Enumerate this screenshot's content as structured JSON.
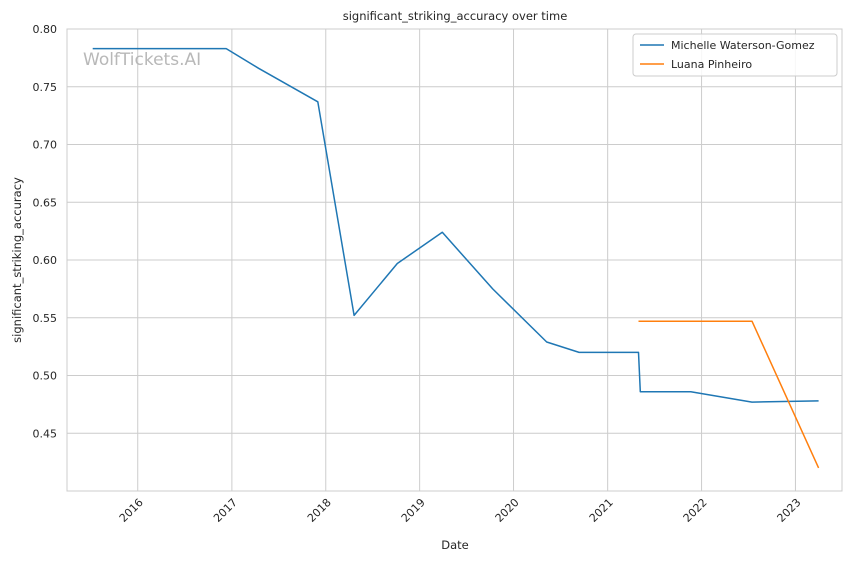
{
  "chart_data": {
    "type": "line",
    "title": "significant_striking_accuracy over time",
    "xlabel": "Date",
    "ylabel": "significant_striking_accuracy",
    "watermark": "WolfTickets.AI",
    "xlim": [
      "2015-04-01",
      "2023-07-01"
    ],
    "ylim": [
      0.4,
      0.8
    ],
    "x_ticks": [
      "2016-01-01",
      "2017-01-01",
      "2018-01-01",
      "2019-01-01",
      "2020-01-01",
      "2021-01-01",
      "2022-01-01",
      "2023-01-01"
    ],
    "x_tick_labels": [
      "2016",
      "2017",
      "2018",
      "2019",
      "2020",
      "2021",
      "2022",
      "2023"
    ],
    "y_ticks": [
      0.45,
      0.5,
      0.55,
      0.6,
      0.65,
      0.7,
      0.75,
      0.8
    ],
    "y_tick_labels": [
      "0.45",
      "0.50",
      "0.55",
      "0.60",
      "0.65",
      "0.70",
      "0.75",
      "0.80"
    ],
    "grid": true,
    "legend_position": "top-right",
    "series": [
      {
        "name": "Michelle Waterson-Gomez",
        "color": "#1f77b4",
        "points": [
          {
            "x": "2015-07-10",
            "y": 0.783
          },
          {
            "x": "2016-12-10",
            "y": 0.783
          },
          {
            "x": "2017-04-15",
            "y": 0.766
          },
          {
            "x": "2017-12-01",
            "y": 0.737
          },
          {
            "x": "2018-04-21",
            "y": 0.552
          },
          {
            "x": "2018-10-06",
            "y": 0.597
          },
          {
            "x": "2019-03-30",
            "y": 0.624
          },
          {
            "x": "2019-10-12",
            "y": 0.575
          },
          {
            "x": "2020-05-09",
            "y": 0.529
          },
          {
            "x": "2020-09-12",
            "y": 0.52
          },
          {
            "x": "2021-05-01",
            "y": 0.52
          },
          {
            "x": "2021-05-08",
            "y": 0.486
          },
          {
            "x": "2021-11-20",
            "y": 0.486
          },
          {
            "x": "2022-07-16",
            "y": 0.477
          },
          {
            "x": "2023-04-01",
            "y": 0.478
          }
        ]
      },
      {
        "name": "Luana Pinheiro",
        "color": "#ff7f0e",
        "points": [
          {
            "x": "2021-05-01",
            "y": 0.547
          },
          {
            "x": "2022-07-16",
            "y": 0.547
          },
          {
            "x": "2023-04-01",
            "y": 0.42
          }
        ]
      }
    ]
  }
}
